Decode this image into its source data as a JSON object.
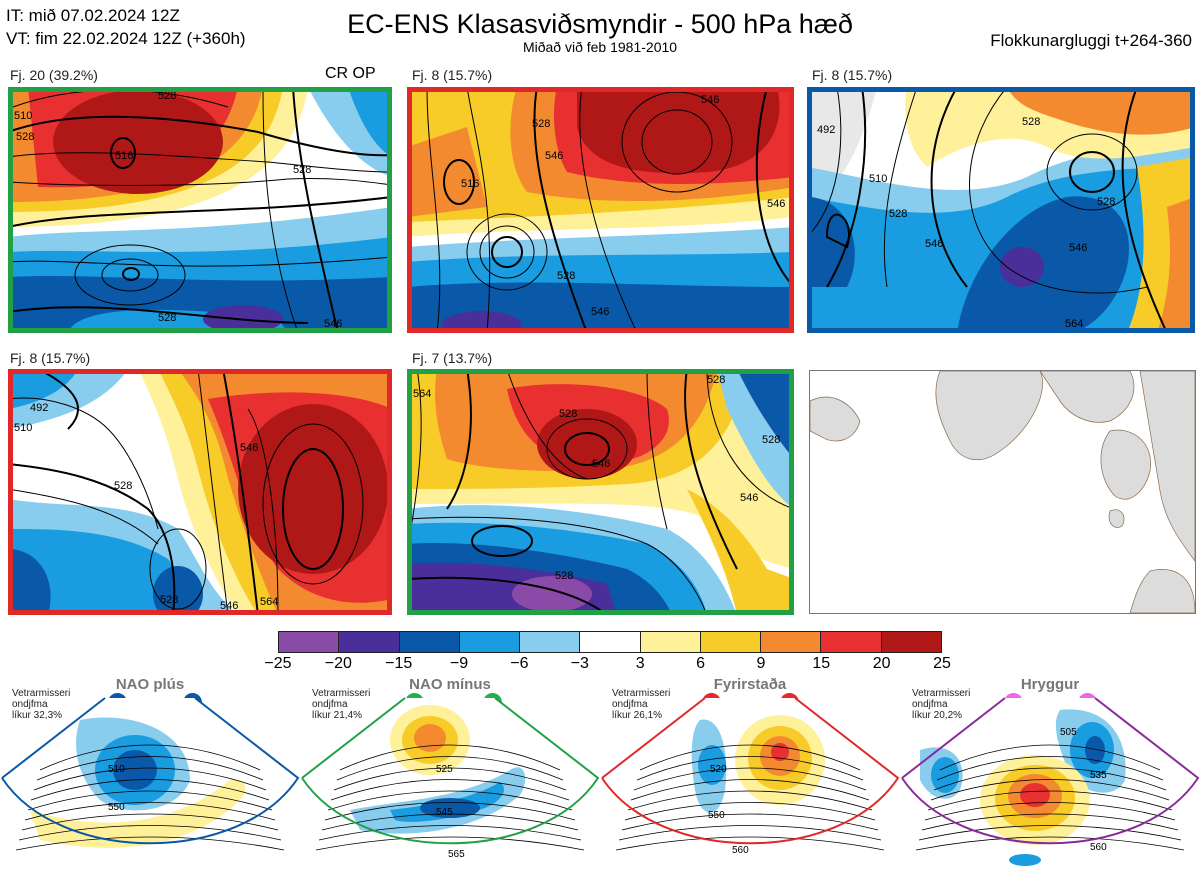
{
  "header": {
    "it_line": "IT: mið 07.02.2024 12Z",
    "vt_line": "VT: fim 22.02.2024 12Z  (+360h)",
    "title": "EC-ENS Klasasviðsmyndir - 500 hPa hæð",
    "subtitle": "Miðað við feb 1981-2010",
    "window": "Flokkunargluggi t+264-360"
  },
  "panels": [
    {
      "label": "Fj. 20 (39.2%)",
      "border": "#22a046",
      "marker": "CR OP",
      "contours": [
        "510",
        "528",
        "528",
        "516",
        "528",
        "528",
        "546"
      ]
    },
    {
      "label": "Fj. 8 (15.7%)",
      "border": "#e02828",
      "contours": [
        "516",
        "528",
        "546",
        "546",
        "528",
        "546",
        "546"
      ]
    },
    {
      "label": "Fj. 8 (15.7%)",
      "border": "#0a58a8",
      "contours": [
        "492",
        "510",
        "528",
        "528",
        "546",
        "528",
        "546",
        "564"
      ]
    },
    {
      "label": "Fj. 8 (15.7%)",
      "border": "#e02828",
      "contours": [
        "492",
        "528",
        "546",
        "510",
        "528",
        "546",
        "564"
      ]
    },
    {
      "label": "Fj. 7 (13.7%)",
      "border": "#22a046",
      "contours": [
        "528",
        "528",
        "546",
        "528",
        "564",
        "528",
        "546"
      ]
    }
  ],
  "colorbar": {
    "ticks": [
      "−25",
      "−20",
      "−15",
      "−9",
      "−6",
      "−3",
      "3",
      "6",
      "9",
      "15",
      "20",
      "25"
    ],
    "colors": [
      "#8a4aa8",
      "#4a2e9a",
      "#0a58a8",
      "#1a9ce0",
      "#88ccee",
      "#ffffff",
      "#fff09a",
      "#f8cc28",
      "#f48a30",
      "#e83030",
      "#b01818"
    ]
  },
  "regimes": [
    {
      "name": "NAO plús",
      "stat": [
        "Vetrarmisseri",
        "ondjfma",
        "líkur 32,3%"
      ],
      "dot_color": "#0a58a8",
      "border": "#0a58a8",
      "contours": [
        "510",
        "550"
      ]
    },
    {
      "name": "NAO mínus",
      "stat": [
        "Vetrarmisseri",
        "ondjfma",
        "líkur 21,4%"
      ],
      "dot_color": "#22b04a",
      "border": "#22a046",
      "contours": [
        "525",
        "545",
        "565"
      ]
    },
    {
      "name": "Fyrirstaða",
      "stat": [
        "Vetrarmisseri",
        "ondjfma",
        "líkur 26,1%"
      ],
      "dot_color": "#e82828",
      "border": "#e02828",
      "contours": [
        "520",
        "550",
        "560"
      ]
    },
    {
      "name": "Hryggur",
      "stat": [
        "Vetrarmisseri",
        "ondjfma",
        "líkur 20,2%"
      ],
      "dot_color": "#ee66ee",
      "border": "#8a2a9a",
      "contours": [
        "505",
        "535",
        "560"
      ]
    }
  ]
}
